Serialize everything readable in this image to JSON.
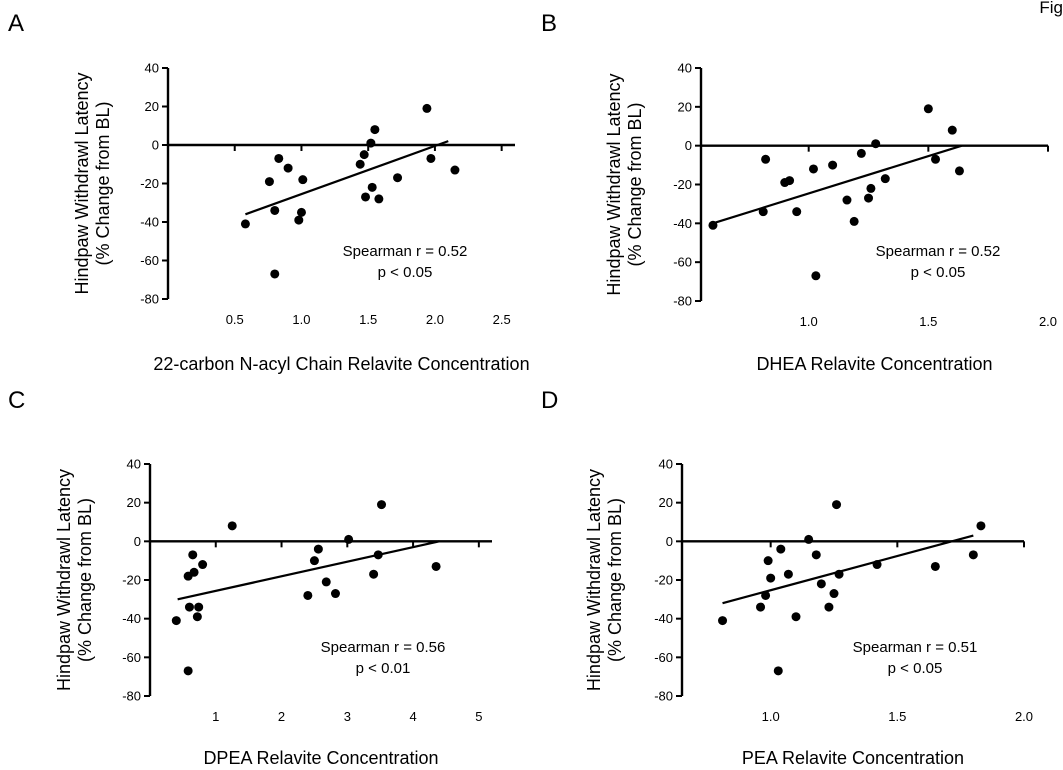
{
  "figure_label": "Fig",
  "chart_data": [
    {
      "panel": "A",
      "type": "scatter",
      "xlabel": "22-carbon N-acyl Chain Relavite Concentration",
      "ylabel_lines": [
        "Hindpaw Withdrawl Latency",
        "(% Change from BL)"
      ],
      "xlim": [
        0,
        2.6
      ],
      "ylim": [
        -80,
        40
      ],
      "xticks": [
        "0.5",
        "1.0",
        "1.5",
        "2.0",
        "2.5"
      ],
      "xtick_values": [
        0.5,
        1.0,
        1.5,
        2.0,
        2.5
      ],
      "yticks": [
        "40",
        "20",
        "0",
        "-20",
        "-40",
        "-60",
        "-80"
      ],
      "ytick_values": [
        40,
        20,
        0,
        -20,
        -40,
        -60,
        -80
      ],
      "points": [
        [
          0.58,
          -41
        ],
        [
          0.76,
          -19
        ],
        [
          0.8,
          -34
        ],
        [
          0.8,
          -67
        ],
        [
          0.83,
          -7
        ],
        [
          0.9,
          -12
        ],
        [
          0.98,
          -39
        ],
        [
          1.0,
          -35
        ],
        [
          1.01,
          -18
        ],
        [
          1.44,
          -10
        ],
        [
          1.47,
          -5
        ],
        [
          1.48,
          -27
        ],
        [
          1.52,
          1
        ],
        [
          1.53,
          -22
        ],
        [
          1.55,
          8
        ],
        [
          1.58,
          -28
        ],
        [
          1.72,
          -17
        ],
        [
          1.94,
          19
        ],
        [
          1.97,
          -7
        ],
        [
          2.15,
          -13
        ]
      ],
      "trend_line": {
        "x": [
          0.58,
          2.1
        ],
        "y": [
          -36,
          2
        ]
      },
      "annotation": [
        "Spearman r = 0.52",
        "p < 0.05"
      ]
    },
    {
      "panel": "B",
      "type": "scatter",
      "xlabel": "DHEA Relavite Concentration",
      "ylabel_lines": [
        "Hindpaw Withdrawl Latency",
        "(% Change from BL)"
      ],
      "xlim": [
        0.55,
        2.0
      ],
      "ylim": [
        -80,
        40
      ],
      "xticks": [
        "1.0",
        "1.5",
        "2.0"
      ],
      "xtick_values": [
        1.0,
        1.5,
        2.0
      ],
      "yticks": [
        "40",
        "20",
        "0",
        "-20",
        "-40",
        "-60",
        "-80"
      ],
      "ytick_values": [
        40,
        20,
        0,
        -20,
        -40,
        -60,
        -80
      ],
      "points": [
        [
          0.6,
          -41
        ],
        [
          0.81,
          -34
        ],
        [
          0.82,
          -7
        ],
        [
          0.9,
          -19
        ],
        [
          0.92,
          -18
        ],
        [
          0.95,
          -34
        ],
        [
          1.02,
          -12
        ],
        [
          1.03,
          -67
        ],
        [
          1.1,
          -10
        ],
        [
          1.16,
          -28
        ],
        [
          1.19,
          -39
        ],
        [
          1.22,
          -4
        ],
        [
          1.25,
          -27
        ],
        [
          1.26,
          -22
        ],
        [
          1.28,
          1
        ],
        [
          1.32,
          -17
        ],
        [
          1.5,
          19
        ],
        [
          1.53,
          -7
        ],
        [
          1.6,
          8
        ],
        [
          1.63,
          -13
        ]
      ],
      "trend_line": {
        "x": [
          0.6,
          1.64
        ],
        "y": [
          -40,
          0
        ]
      },
      "annotation": [
        "Spearman r = 0.52",
        "p < 0.05"
      ]
    },
    {
      "panel": "C",
      "type": "scatter",
      "xlabel": "DPEA Relavite Concentration",
      "ylabel_lines": [
        "Hindpaw Withdrawl Latency",
        "(% Change from BL)"
      ],
      "xlim": [
        0,
        5.2
      ],
      "ylim": [
        -80,
        40
      ],
      "xticks": [
        "1",
        "2",
        "3",
        "4",
        "5"
      ],
      "xtick_values": [
        1,
        2,
        3,
        4,
        5
      ],
      "yticks": [
        "40",
        "20",
        "0",
        "-20",
        "-40",
        "-60",
        "-80"
      ],
      "ytick_values": [
        40,
        20,
        0,
        -20,
        -40,
        -60,
        -80
      ],
      "points": [
        [
          0.4,
          -41
        ],
        [
          0.58,
          -67
        ],
        [
          0.58,
          -18
        ],
        [
          0.6,
          -34
        ],
        [
          0.65,
          -7
        ],
        [
          0.67,
          -16
        ],
        [
          0.72,
          -39
        ],
        [
          0.74,
          -34
        ],
        [
          0.8,
          -12
        ],
        [
          1.25,
          8
        ],
        [
          2.4,
          -28
        ],
        [
          2.5,
          -10
        ],
        [
          2.56,
          -4
        ],
        [
          2.68,
          -21
        ],
        [
          2.82,
          -27
        ],
        [
          3.02,
          1
        ],
        [
          3.4,
          -17
        ],
        [
          3.47,
          -7
        ],
        [
          3.52,
          19
        ],
        [
          4.35,
          -13
        ]
      ],
      "trend_line": {
        "x": [
          0.42,
          4.4
        ],
        "y": [
          -30,
          0
        ]
      },
      "annotation": [
        "Spearman r = 0.56",
        "p < 0.01"
      ]
    },
    {
      "panel": "D",
      "type": "scatter",
      "xlabel": "PEA Relavite Concentration",
      "ylabel_lines": [
        "Hindpaw Withdrawl Latency",
        "(% Change from BL)"
      ],
      "xlim": [
        0.65,
        2.0
      ],
      "ylim": [
        -80,
        40
      ],
      "xticks": [
        "1.0",
        "1.5",
        "2.0"
      ],
      "xtick_values": [
        1.0,
        1.5,
        2.0
      ],
      "yticks": [
        "40",
        "20",
        "0",
        "-20",
        "-40",
        "-60",
        "-80"
      ],
      "ytick_values": [
        40,
        20,
        0,
        -20,
        -40,
        -60,
        -80
      ],
      "points": [
        [
          0.81,
          -41
        ],
        [
          0.96,
          -34
        ],
        [
          0.98,
          -28
        ],
        [
          0.99,
          -10
        ],
        [
          1.0,
          -19
        ],
        [
          1.03,
          -67
        ],
        [
          1.04,
          -4
        ],
        [
          1.07,
          -17
        ],
        [
          1.1,
          -39
        ],
        [
          1.15,
          1
        ],
        [
          1.18,
          -7
        ],
        [
          1.2,
          -22
        ],
        [
          1.23,
          -34
        ],
        [
          1.25,
          -27
        ],
        [
          1.26,
          19
        ],
        [
          1.27,
          -17
        ],
        [
          1.42,
          -12
        ],
        [
          1.65,
          -13
        ],
        [
          1.8,
          -7
        ],
        [
          1.83,
          8
        ]
      ],
      "trend_line": {
        "x": [
          0.81,
          1.8
        ],
        "y": [
          -32,
          3
        ]
      },
      "annotation": [
        "Spearman r = 0.51",
        "p < 0.05"
      ]
    }
  ]
}
